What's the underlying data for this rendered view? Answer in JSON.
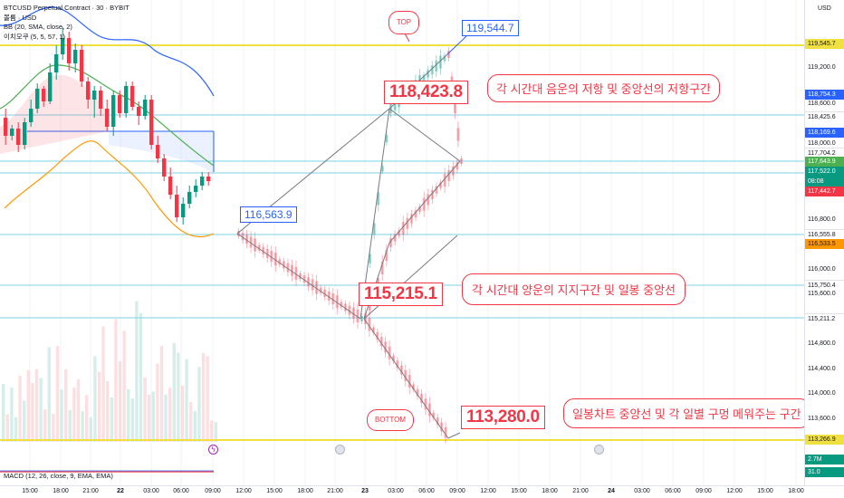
{
  "legend": {
    "symbol": "BTCUSD Perpetual Contract · 30 · BYBIT",
    "volume": "볼륨 · USD",
    "bb": "BB (20, SMA, close, 2)",
    "ichimoku": "이치모쿠 (5, 5, 57, 1)"
  },
  "macd_label": "MACD (12, 26, close, 9, EMA, EMA)",
  "price_axis": {
    "currency": "USD",
    "ticks": [
      "119,200.0",
      "118,600.0",
      "118,000.0",
      "116,800.0",
      "116,000.0",
      "115,600.0",
      "114,800.0",
      "114,400.0",
      "114,000.0",
      "113,600.0"
    ],
    "badges": [
      {
        "text": "119,545.7",
        "color": "#f0e040",
        "text_color": "#131722"
      },
      {
        "text": "118,754.3",
        "color": "#2962ff",
        "text_color": "#ffffff"
      },
      {
        "text": "118,425.6",
        "color": "#ffffff",
        "text_color": "#131722"
      },
      {
        "text": "118,169.6",
        "color": "#2962ff",
        "text_color": "#ffffff"
      },
      {
        "text": "117,704.2",
        "color": "#ffffff",
        "text_color": "#131722"
      },
      {
        "text": "117,643.9",
        "color": "#4caf50",
        "text_color": "#ffffff"
      },
      {
        "text": "117,522.0",
        "color": "#089981",
        "text_color": "#ffffff"
      },
      {
        "text": "08:08",
        "color": "#089981",
        "text_color": "#ffffff"
      },
      {
        "text": "117,442.7",
        "color": "#f23645",
        "text_color": "#ffffff"
      },
      {
        "text": "116,555.8",
        "color": "#ffffff",
        "text_color": "#131722"
      },
      {
        "text": "116,533.5",
        "color": "#ff9800",
        "text_color": "#131722"
      },
      {
        "text": "115,750.4",
        "color": "#ffffff",
        "text_color": "#131722"
      },
      {
        "text": "115,211.2",
        "color": "#ffffff",
        "text_color": "#131722"
      },
      {
        "text": "113,266.9",
        "color": "#f0e040",
        "text_color": "#131722"
      },
      {
        "text": "2.7M",
        "color": "#089981",
        "text_color": "#ffffff"
      },
      {
        "text": "31.0",
        "color": "#089981",
        "text_color": "#ffffff"
      }
    ]
  },
  "time_axis": [
    {
      "text": "15:00",
      "bold": false
    },
    {
      "text": "18:00",
      "bold": false
    },
    {
      "text": "21:00",
      "bold": false
    },
    {
      "text": "22",
      "bold": true
    },
    {
      "text": "03:00",
      "bold": false
    },
    {
      "text": "06:00",
      "bold": false
    },
    {
      "text": "09:00",
      "bold": false
    },
    {
      "text": "12:00",
      "bold": false
    },
    {
      "text": "15:00",
      "bold": false
    },
    {
      "text": "18:00",
      "bold": false
    },
    {
      "text": "21:00",
      "bold": false
    },
    {
      "text": "23",
      "bold": true
    },
    {
      "text": "03:00",
      "bold": false
    },
    {
      "text": "06:00",
      "bold": false
    },
    {
      "text": "09:00",
      "bold": false
    },
    {
      "text": "12:00",
      "bold": false
    },
    {
      "text": "15:00",
      "bold": false
    },
    {
      "text": "18:00",
      "bold": false
    },
    {
      "text": "21:00",
      "bold": false
    },
    {
      "text": "24",
      "bold": true
    },
    {
      "text": "03:00",
      "bold": false
    },
    {
      "text": "06:00",
      "bold": false
    },
    {
      "text": "09:00",
      "bold": false
    },
    {
      "text": "12:00",
      "bold": false
    },
    {
      "text": "15:00",
      "bold": false
    },
    {
      "text": "18:00",
      "bold": false
    }
  ],
  "annotations": {
    "top_bubble": "TOP",
    "bottom_bubble": "BOTTOM",
    "price_top_blue": "119,544.7",
    "price_start_blue": "116,563.9",
    "price_resistance": "118,423.8",
    "price_support": "115,215.1",
    "price_bottom": "113,280.0",
    "text_resistance": "각 시간대 음운의 저항 및 중앙선의 저항구간",
    "text_support": "각 시간대 양운의 지지구간 및 일봉 중앙선",
    "text_bottom": "일봉차트 중앙선 및 각 일별 구멍 메워주는 구간"
  },
  "colors": {
    "bull": "#089981",
    "bear": "#f23645",
    "yellow_line": "#f0e040",
    "cyan_line": "#7fd3e6",
    "bb_upper": "#2962ff",
    "bb_basis": "#4caf50",
    "bb_lower": "#ff9800"
  }
}
